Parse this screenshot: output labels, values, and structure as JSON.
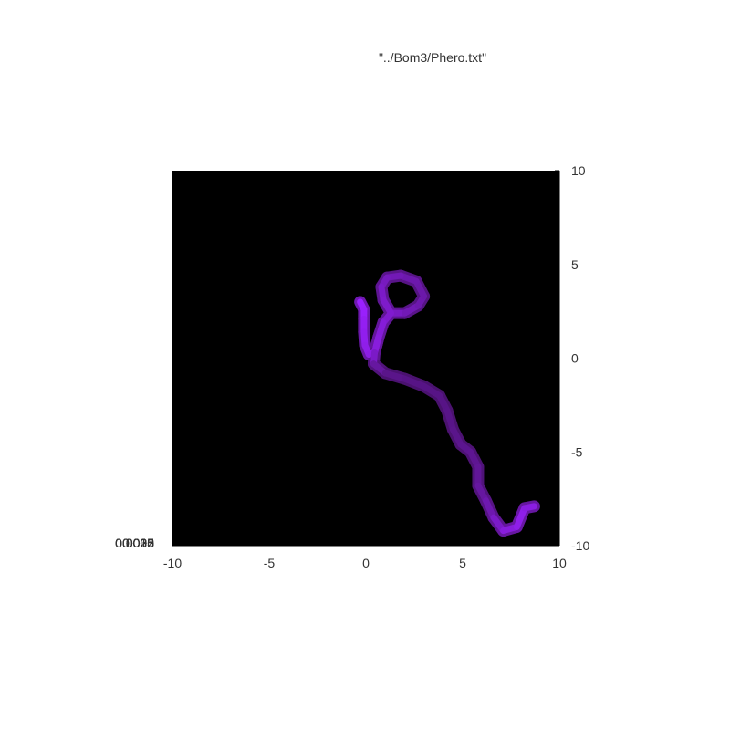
{
  "chart_data": {
    "type": "heatmap",
    "title": "\"../Bom3/Phero.txt\"",
    "xlabel": "",
    "ylabel": "",
    "xlim": [
      -10,
      10
    ],
    "ylim": [
      -10,
      10
    ],
    "x_ticks": [
      -10,
      -5,
      0,
      5,
      10
    ],
    "y_ticks": [
      10,
      5,
      0,
      -5,
      -10
    ],
    "colorbox_overlapping_labels": [
      "0.0035",
      "0.003",
      "0.0025",
      "0.002",
      "0.0015",
      "0.001",
      "0.0005",
      "0"
    ],
    "background_color": "#000000",
    "trail_colors": {
      "strong": "#9b20ff",
      "faint": "#3a0f52"
    },
    "trail": [
      {
        "x": -0.3,
        "y": 3.0,
        "intensity": 1.0
      },
      {
        "x": -0.1,
        "y": 2.6,
        "intensity": 1.0
      },
      {
        "x": -0.1,
        "y": 2.1,
        "intensity": 0.95
      },
      {
        "x": -0.1,
        "y": 1.4,
        "intensity": 0.9
      },
      {
        "x": -0.05,
        "y": 0.7,
        "intensity": 0.9
      },
      {
        "x": 0.15,
        "y": 0.2,
        "intensity": 0.85
      },
      {
        "x": 0.45,
        "y": 0.3,
        "intensity": 0.85
      },
      {
        "x": 0.65,
        "y": 1.1,
        "intensity": 0.8
      },
      {
        "x": 0.9,
        "y": 1.9,
        "intensity": 0.75
      },
      {
        "x": 1.3,
        "y": 2.4,
        "intensity": 0.7
      },
      {
        "x": 2.0,
        "y": 2.4,
        "intensity": 0.6
      },
      {
        "x": 2.7,
        "y": 2.8,
        "intensity": 0.55
      },
      {
        "x": 3.0,
        "y": 3.3,
        "intensity": 0.5
      },
      {
        "x": 2.6,
        "y": 4.1,
        "intensity": 0.5
      },
      {
        "x": 1.8,
        "y": 4.4,
        "intensity": 0.55
      },
      {
        "x": 1.1,
        "y": 4.3,
        "intensity": 0.6
      },
      {
        "x": 0.8,
        "y": 3.8,
        "intensity": 0.65
      },
      {
        "x": 0.9,
        "y": 3.1,
        "intensity": 0.7
      },
      {
        "x": 1.3,
        "y": 2.4,
        "intensity": 0.7
      },
      {
        "x": 0.9,
        "y": 1.9,
        "intensity": 0.75
      },
      {
        "x": 0.65,
        "y": 1.1,
        "intensity": 0.8
      },
      {
        "x": 0.45,
        "y": 0.3,
        "intensity": 0.8
      },
      {
        "x": 0.4,
        "y": -0.3,
        "intensity": 0.55
      },
      {
        "x": 1.0,
        "y": -0.8,
        "intensity": 0.35
      },
      {
        "x": 2.0,
        "y": -1.1,
        "intensity": 0.3
      },
      {
        "x": 3.0,
        "y": -1.5,
        "intensity": 0.3
      },
      {
        "x": 3.8,
        "y": -2.0,
        "intensity": 0.3
      },
      {
        "x": 4.2,
        "y": -2.8,
        "intensity": 0.3
      },
      {
        "x": 4.5,
        "y": -3.8,
        "intensity": 0.32
      },
      {
        "x": 4.9,
        "y": -4.6,
        "intensity": 0.34
      },
      {
        "x": 5.4,
        "y": -5.0,
        "intensity": 0.36
      },
      {
        "x": 5.8,
        "y": -5.8,
        "intensity": 0.38
      },
      {
        "x": 5.8,
        "y": -6.8,
        "intensity": 0.42
      },
      {
        "x": 6.2,
        "y": -7.6,
        "intensity": 0.48
      },
      {
        "x": 6.6,
        "y": -8.5,
        "intensity": 0.6
      },
      {
        "x": 7.1,
        "y": -9.2,
        "intensity": 0.75
      },
      {
        "x": 7.8,
        "y": -9.0,
        "intensity": 0.85
      },
      {
        "x": 8.2,
        "y": -8.0,
        "intensity": 0.9
      },
      {
        "x": 8.7,
        "y": -7.9,
        "intensity": 0.75
      }
    ]
  }
}
